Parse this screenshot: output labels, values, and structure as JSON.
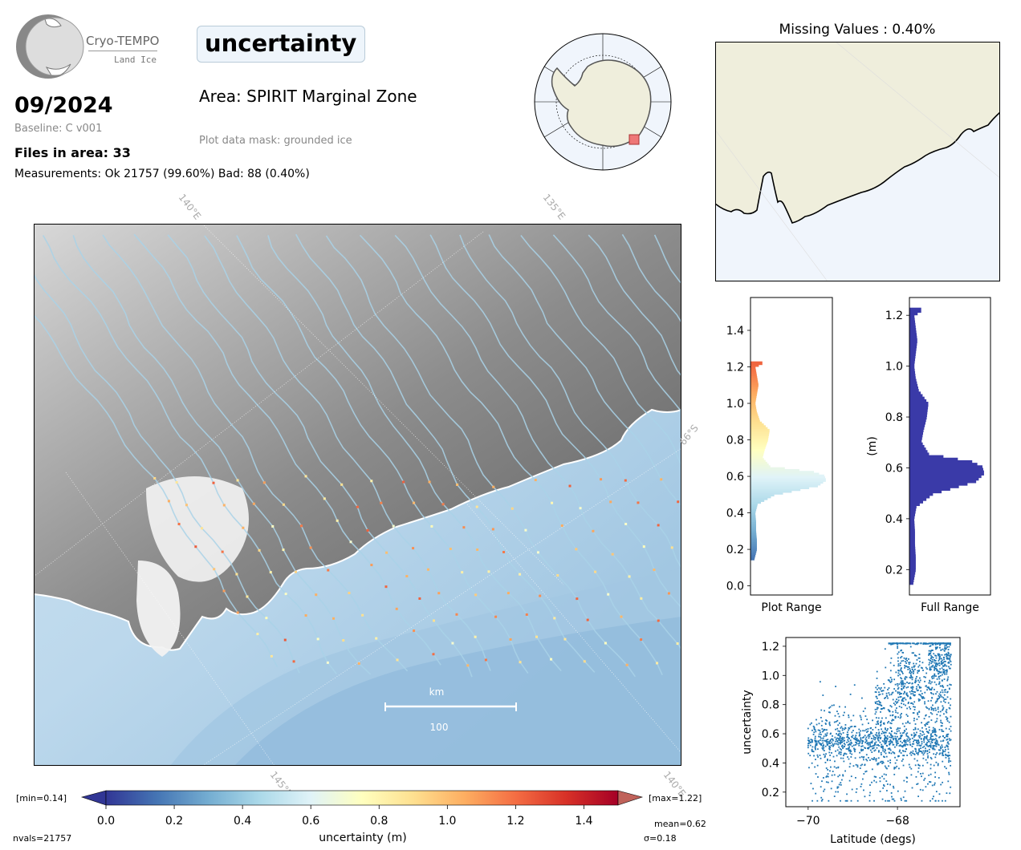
{
  "logo": {
    "name": "Cryo-TEMPO",
    "subtitle": "Land Ice"
  },
  "parameter": "uncertainty",
  "date": "09/2024",
  "baseline": "Baseline: C v001",
  "files": "Files in area: 33",
  "measurements": "Measurements: Ok 21757 (99.60%) Bad: 88 (0.40%)",
  "area": "Area: SPIRIT Marginal Zone",
  "mask": "Plot data mask: grounded ice",
  "missing": "Missing Values : 0.40%",
  "map": {
    "grid_labels": [
      "140°E",
      "135°E",
      "66°S",
      "145°E",
      "140°E"
    ],
    "scale_unit": "km",
    "scale_value": "100"
  },
  "colorbar": {
    "label": "uncertainty (m)",
    "min_label": "[min=0.14]",
    "max_label": "[max=1.22]",
    "ticks": [
      "0.0",
      "0.2",
      "0.4",
      "0.6",
      "0.8",
      "1.0",
      "1.2",
      "1.4"
    ],
    "range": [
      0,
      1.5
    ],
    "nvals": "nvals=21757",
    "mean": "mean=0.62",
    "sigma": "σ=0.18",
    "colors": [
      "#313695",
      "#4575b4",
      "#74add1",
      "#abd9e9",
      "#e0f3f8",
      "#ffffbf",
      "#fee090",
      "#fdae61",
      "#f46d43",
      "#d73027",
      "#a50026"
    ]
  },
  "chart_data": [
    {
      "type": "bar",
      "orientation": "horizontal",
      "title": "",
      "xlabel": "Plot Range",
      "ylabel": "",
      "ylim": [
        -0.05,
        1.58
      ],
      "yticks": [
        "0.0",
        "0.2",
        "0.4",
        "0.6",
        "0.8",
        "1.0",
        "1.2",
        "1.4"
      ],
      "bins_center": [
        0.15,
        0.2,
        0.25,
        0.3,
        0.35,
        0.4,
        0.45,
        0.5,
        0.55,
        0.58,
        0.6,
        0.62,
        0.65,
        0.7,
        0.75,
        0.8,
        0.85,
        0.9,
        0.95,
        1.0,
        1.05,
        1.1,
        1.15,
        1.2,
        1.22
      ],
      "counts": [
        5,
        8,
        8,
        7,
        7,
        6,
        9,
        30,
        85,
        95,
        93,
        80,
        25,
        15,
        18,
        22,
        24,
        12,
        8,
        6,
        8,
        10,
        8,
        6,
        15
      ]
    },
    {
      "type": "bar",
      "orientation": "horizontal",
      "title": "",
      "xlabel": "Full Range",
      "ylabel": "(m)",
      "ylim": [
        0.1,
        1.27
      ],
      "yticks": [
        "0.2",
        "0.4",
        "0.6",
        "0.8",
        "1.0",
        "1.2"
      ],
      "bins_center": [
        0.15,
        0.2,
        0.25,
        0.3,
        0.35,
        0.4,
        0.45,
        0.5,
        0.55,
        0.58,
        0.6,
        0.62,
        0.65,
        0.7,
        0.75,
        0.8,
        0.85,
        0.9,
        0.95,
        1.0,
        1.05,
        1.1,
        1.15,
        1.2,
        1.22
      ],
      "counts": [
        5,
        8,
        8,
        7,
        7,
        6,
        9,
        30,
        85,
        95,
        93,
        80,
        25,
        15,
        18,
        22,
        24,
        12,
        8,
        6,
        8,
        10,
        8,
        6,
        15
      ]
    },
    {
      "type": "scatter",
      "title": "",
      "xlabel": "Latitude (degs)",
      "ylabel": "uncertainty",
      "xlim": [
        -70.5,
        -66.6
      ],
      "ylim": [
        0.1,
        1.26
      ],
      "xticks": [
        "−70",
        "−68"
      ],
      "yticks": [
        "0.2",
        "0.4",
        "0.6",
        "0.8",
        "1.0",
        "1.2"
      ],
      "color": "#1f77b4",
      "clusters": [
        {
          "x": [
            -70.0,
            -66.8
          ],
          "y_center": 0.55,
          "y_spread": 0.06,
          "n": 700
        },
        {
          "x": [
            -70.0,
            -66.8
          ],
          "y_center": 0.45,
          "y_spread": 0.2,
          "n": 500
        },
        {
          "x": [
            -68.5,
            -66.8
          ],
          "y_center": 0.85,
          "y_spread": 0.1,
          "n": 350
        },
        {
          "x": [
            -67.3,
            -66.8
          ],
          "y_center": 1.1,
          "y_spread": 0.08,
          "n": 200
        },
        {
          "x": [
            -68.2,
            -66.8
          ],
          "y_center": 1.22,
          "y_spread": 0.005,
          "n": 120
        },
        {
          "x": [
            -68.0,
            -67.5
          ],
          "y_center": 1.05,
          "y_spread": 0.1,
          "n": 120
        }
      ]
    }
  ]
}
